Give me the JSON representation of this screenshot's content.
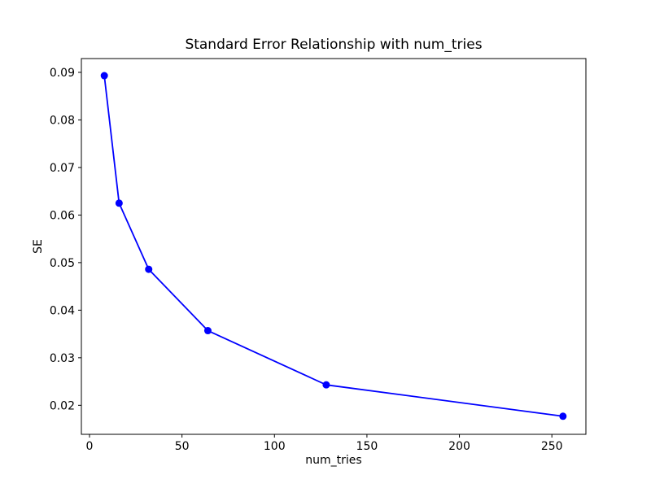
{
  "figure": {
    "background": "#ffffff",
    "text_color": "#000000",
    "spine_color": "#000000"
  },
  "chart_data": {
    "type": "line",
    "title": "Standard Error Relationship with num_tries",
    "xlabel": "num_tries",
    "ylabel": "SE",
    "grid": false,
    "legend": "none",
    "xlim": [
      -4.4,
      268.4
    ],
    "ylim": [
      0.0139,
      0.0929
    ],
    "x_ticks": [
      0,
      50,
      100,
      150,
      200,
      250
    ],
    "y_ticks": [
      0.02,
      0.03,
      0.04,
      0.05,
      0.06,
      0.07,
      0.08,
      0.09
    ],
    "y_tick_decimals": 2,
    "series": [
      {
        "name": "SE",
        "color": "#0000ff",
        "marker": "circle",
        "x": [
          8,
          16,
          32,
          64,
          128,
          256
        ],
        "y": [
          0.0893,
          0.0625,
          0.0486,
          0.0357,
          0.0243,
          0.0177
        ]
      }
    ]
  }
}
